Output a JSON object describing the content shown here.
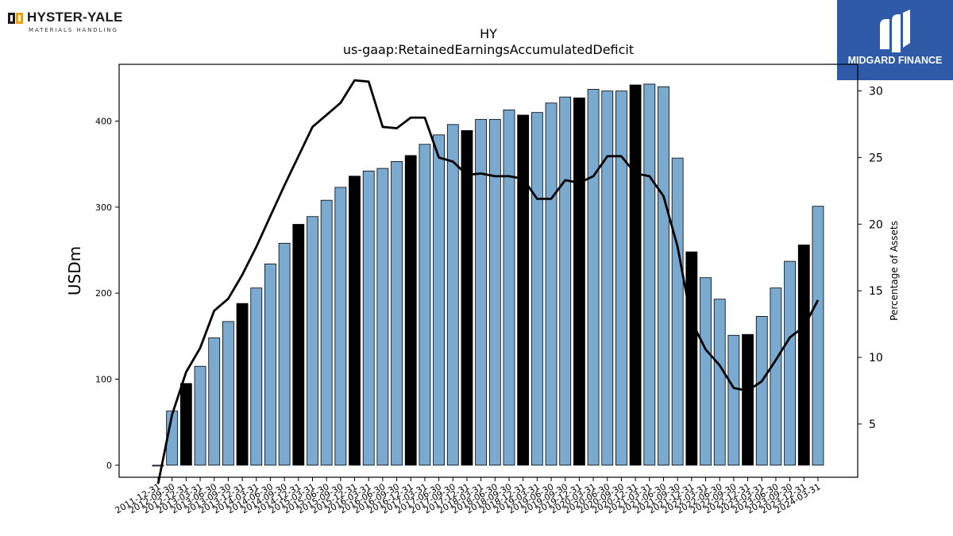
{
  "logos": {
    "left": {
      "name": "HYSTER-YALE",
      "tagline": "MATERIALS HANDLING"
    },
    "right": {
      "name": "MIDGARD FINANCE",
      "color": "#2e5aa8"
    }
  },
  "chart_data": {
    "type": "bar",
    "title": "HY",
    "subtitle": "us-gaap:RetainedEarningsAccumulatedDeficit",
    "ylabel": "USDm",
    "y2label": "Percentage of Assets",
    "ylim": [
      -14,
      466
    ],
    "y2lim": [
      1,
      32
    ],
    "yticks": [
      0,
      100,
      200,
      300,
      400
    ],
    "y2ticks": [
      5,
      10,
      15,
      20,
      25,
      30
    ],
    "bar_color": "#7aaad0",
    "highlight_color": "#000000",
    "line_color": "#000000",
    "categories": [
      "2011-12-31",
      "2012-09-30",
      "2012-12-31",
      "2013-03-31",
      "2013-06-30",
      "2013-09-30",
      "2013-12-31",
      "2014-03-31",
      "2014-06-30",
      "2014-09-30",
      "2014-12-31",
      "2015-03-31",
      "2015-06-30",
      "2015-09-30",
      "2015-12-31",
      "2016-03-31",
      "2016-06-30",
      "2016-09-30",
      "2016-12-31",
      "2017-03-31",
      "2017-06-30",
      "2017-09-30",
      "2017-12-31",
      "2018-03-31",
      "2018-06-30",
      "2018-09-30",
      "2018-12-31",
      "2019-03-31",
      "2019-06-30",
      "2019-09-30",
      "2019-12-31",
      "2020-03-31",
      "2020-06-30",
      "2020-09-30",
      "2020-12-31",
      "2021-03-31",
      "2021-06-30",
      "2021-09-30",
      "2021-12-31",
      "2022-03-31",
      "2022-06-30",
      "2022-09-30",
      "2022-12-31",
      "2023-03-31",
      "2023-06-30",
      "2023-09-30",
      "2023-12-31",
      "2024-03-31"
    ],
    "values": [
      -1,
      63,
      95,
      115,
      148,
      167,
      188,
      206,
      234,
      258,
      280,
      289,
      308,
      323,
      336,
      342,
      345,
      353,
      360,
      373,
      384,
      396,
      389,
      402,
      402,
      413,
      407,
      410,
      421,
      428,
      427,
      437,
      435,
      435,
      442,
      443,
      440,
      357,
      248,
      218,
      193,
      151,
      152,
      173,
      206,
      237,
      256,
      301
    ],
    "highlight": [
      false,
      false,
      true,
      false,
      false,
      false,
      true,
      false,
      false,
      false,
      true,
      false,
      false,
      false,
      true,
      false,
      false,
      false,
      true,
      false,
      false,
      false,
      true,
      false,
      false,
      false,
      true,
      false,
      false,
      false,
      true,
      false,
      false,
      false,
      true,
      false,
      false,
      false,
      true,
      false,
      false,
      false,
      true,
      false,
      false,
      false,
      true,
      false
    ],
    "pct_of_assets": [
      0.5,
      5.7,
      8.9,
      10.7,
      13.5,
      14.4,
      16.2,
      18.3,
      20.6,
      22.9,
      25.1,
      27.3,
      28.2,
      29.1,
      30.8,
      30.7,
      27.3,
      27.2,
      28.0,
      28.0,
      25.0,
      24.7,
      23.7,
      23.8,
      23.6,
      23.6,
      23.4,
      21.9,
      21.9,
      23.3,
      23.1,
      23.6,
      25.1,
      25.1,
      23.8,
      23.6,
      22.1,
      18.3,
      12.7,
      10.6,
      9.4,
      7.7,
      7.5,
      8.2,
      9.8,
      11.5,
      12.3,
      14.3
    ]
  }
}
